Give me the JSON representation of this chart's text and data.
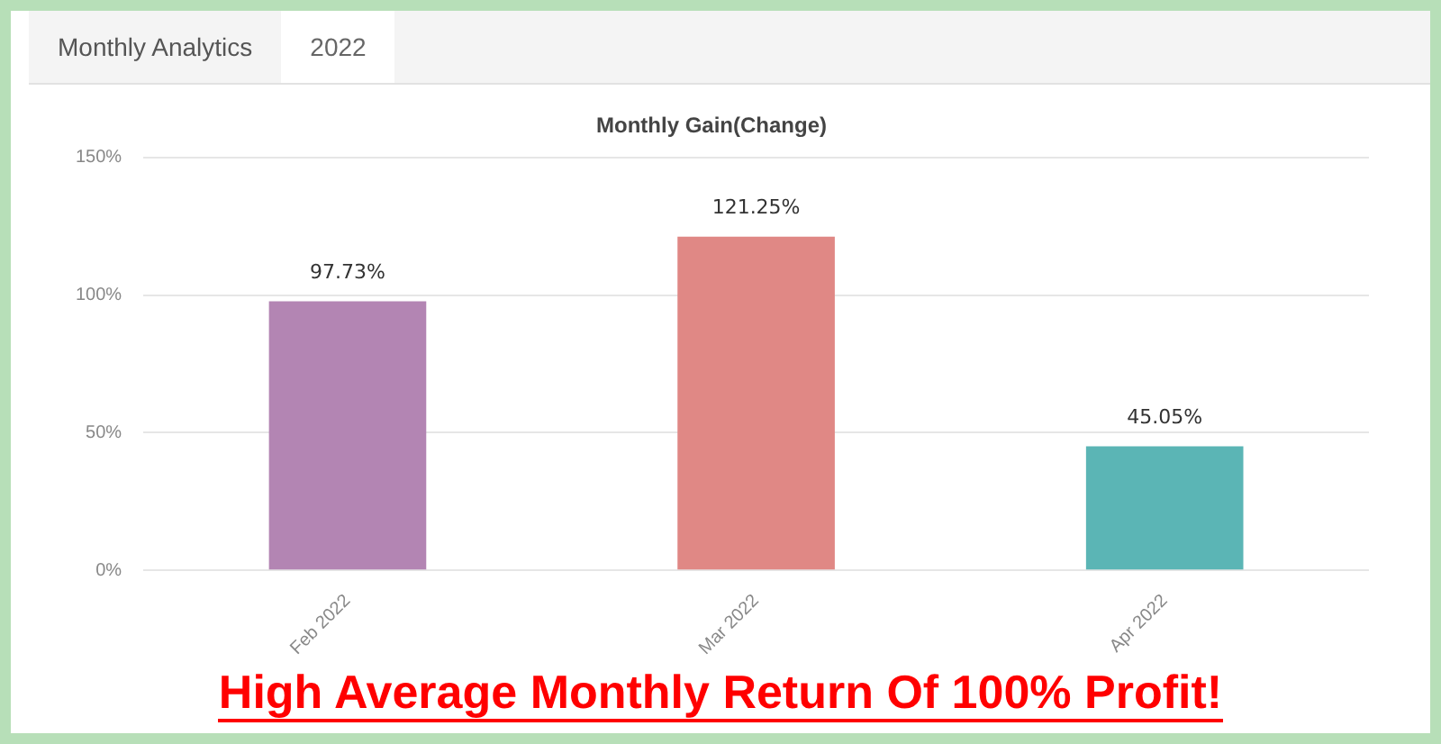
{
  "chart_data": {
    "type": "bar",
    "title": "Monthly Gain(Change)",
    "categories": [
      "Feb 2022",
      "Mar 2022",
      "Apr 2022"
    ],
    "values": [
      97.73,
      121.25,
      45.05
    ],
    "colors": [
      "#b385b3",
      "#e08885",
      "#5bb5b5"
    ],
    "value_labels": [
      "97.73%",
      "121.25%",
      "45.05%"
    ],
    "ylim": [
      0,
      150
    ],
    "yticks": [
      {
        "value": 0,
        "label": "0%"
      },
      {
        "value": 50,
        "label": "50%"
      },
      {
        "value": 100,
        "label": "100%"
      },
      {
        "value": 150,
        "label": "150%"
      }
    ],
    "grid": "y",
    "annotations": [
      "Monthly Analytics",
      "2022",
      "High Average Monthly Return Of 100% Profit!"
    ]
  }
}
